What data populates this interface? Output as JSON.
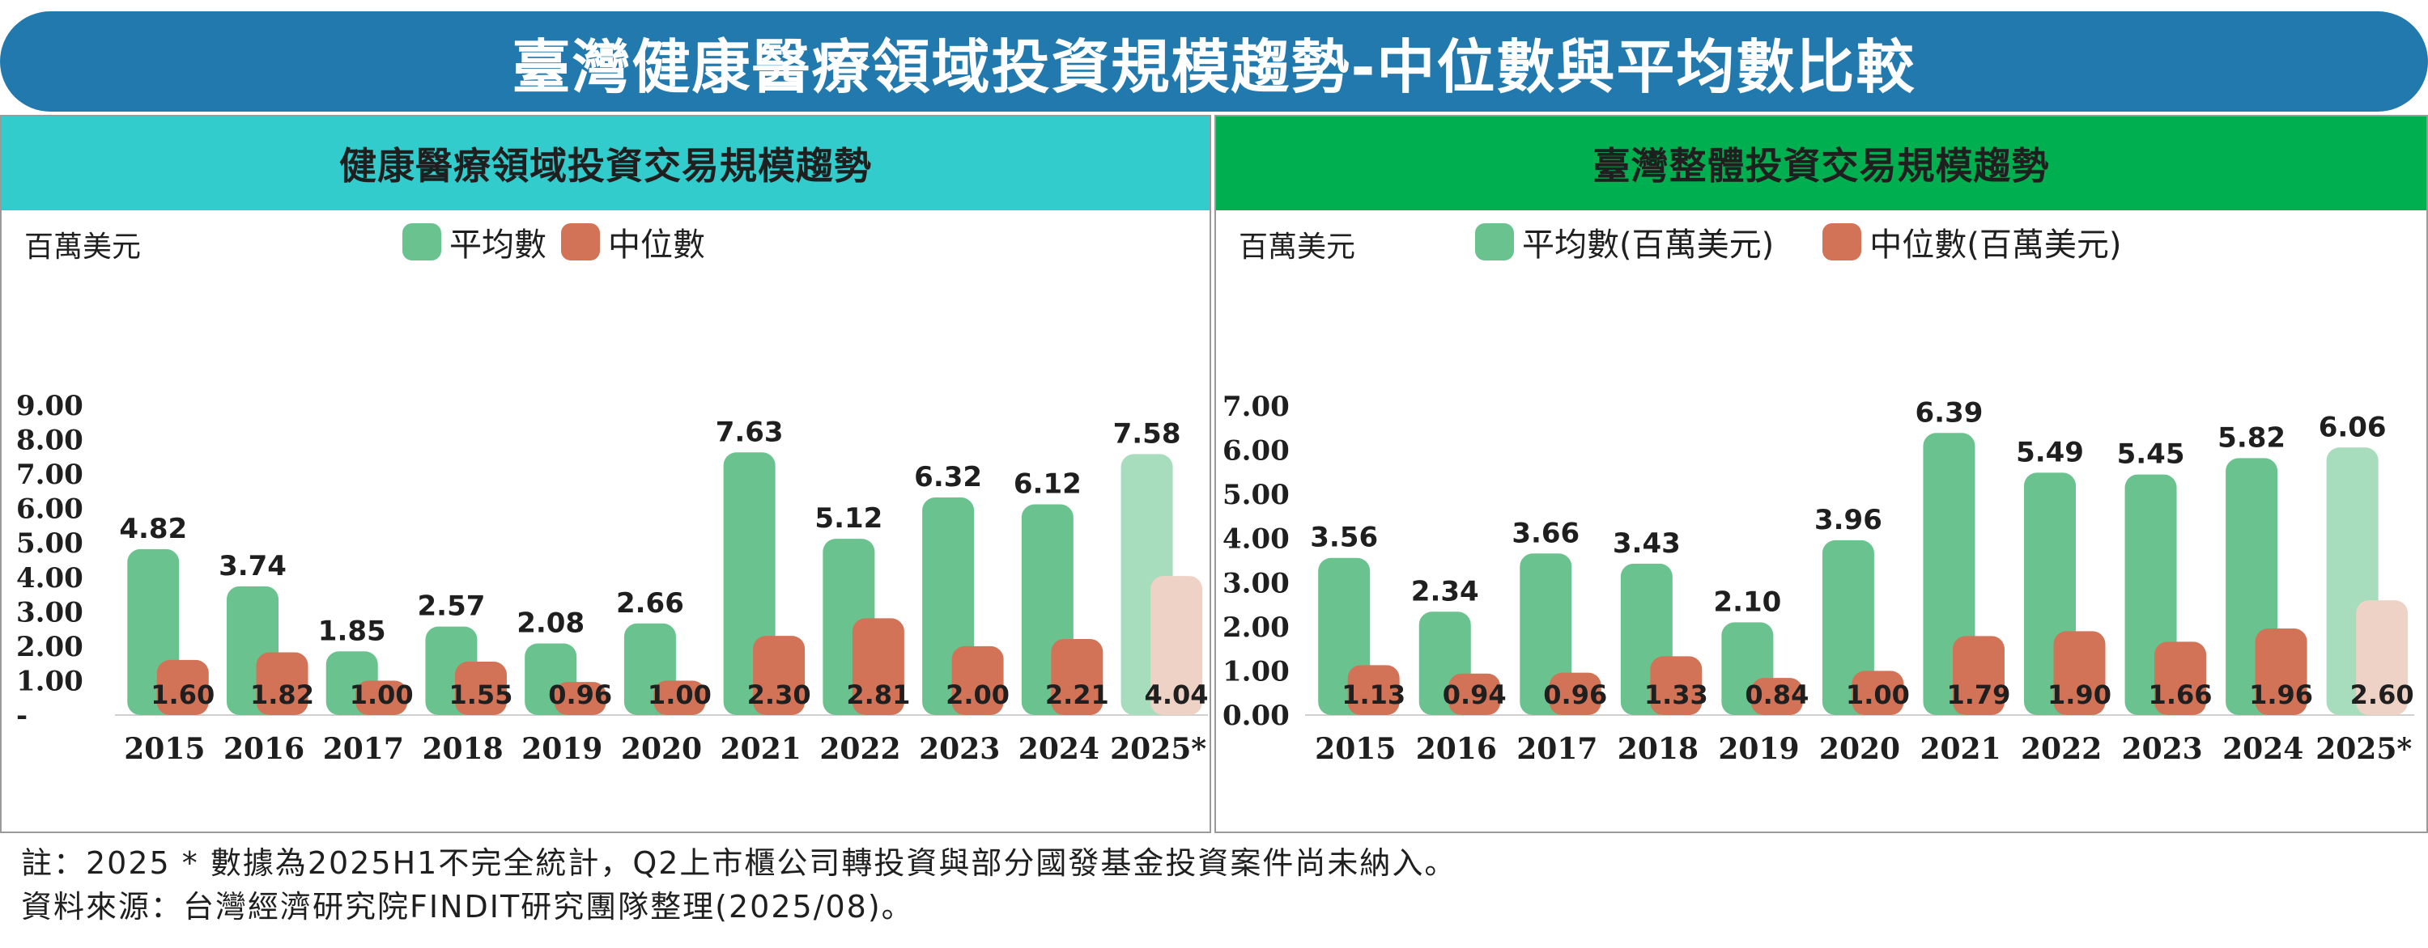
{
  "title": "臺灣健康醫療領域投資規模趨勢-中位數與平均數比較",
  "notes": [
    "註：2025 * 數據為2025H1不完全統計，Q2上市櫃公司轉投資與部分國發基金投資案件尚未納入。",
    "資料來源：台灣經濟研究院FINDIT研究團隊整理(2025/08)。"
  ],
  "colors": {
    "banner": "#2279ad",
    "left_header": "#33cccc",
    "right_header": "#00b050",
    "mean": "#6ac38f",
    "median": "#d27256",
    "mean_partial": "#a7dcbc",
    "median_partial": "#efd2c6"
  },
  "chart_data": [
    {
      "type": "bar",
      "title": "健康醫療領域投資交易規模趨勢",
      "unit_label": "百萬美元",
      "categories": [
        "2015",
        "2016",
        "2017",
        "2018",
        "2019",
        "2020",
        "2021",
        "2022",
        "2023",
        "2024",
        "2025*"
      ],
      "series": [
        {
          "name": "平均數",
          "values": [
            4.82,
            3.74,
            1.85,
            2.57,
            2.08,
            2.66,
            7.63,
            5.12,
            6.32,
            6.12,
            7.58
          ]
        },
        {
          "name": "中位數",
          "values": [
            1.6,
            1.82,
            1.0,
            1.55,
            0.96,
            1.0,
            2.3,
            2.81,
            2.0,
            2.21,
            4.04
          ]
        }
      ],
      "ylim": [
        0,
        9
      ],
      "yticks": [
        "-",
        "1.00",
        "2.00",
        "3.00",
        "4.00",
        "5.00",
        "6.00",
        "7.00",
        "8.00",
        "9.00"
      ],
      "legend_position": "top"
    },
    {
      "type": "bar",
      "title": "臺灣整體投資交易規模趨勢",
      "unit_label": "百萬美元",
      "categories": [
        "2015",
        "2016",
        "2017",
        "2018",
        "2019",
        "2020",
        "2021",
        "2022",
        "2023",
        "2024",
        "2025*"
      ],
      "series": [
        {
          "name": "平均數(百萬美元)",
          "values": [
            3.56,
            2.34,
            3.66,
            3.43,
            2.1,
            3.96,
            6.39,
            5.49,
            5.45,
            5.82,
            6.06
          ]
        },
        {
          "name": "中位數(百萬美元)",
          "values": [
            1.13,
            0.94,
            0.96,
            1.33,
            0.84,
            1.0,
            1.79,
            1.9,
            1.66,
            1.96,
            2.6
          ]
        }
      ],
      "ylim": [
        0,
        7
      ],
      "yticks": [
        "0.00",
        "1.00",
        "2.00",
        "3.00",
        "4.00",
        "5.00",
        "6.00",
        "7.00"
      ],
      "legend_position": "top"
    }
  ]
}
